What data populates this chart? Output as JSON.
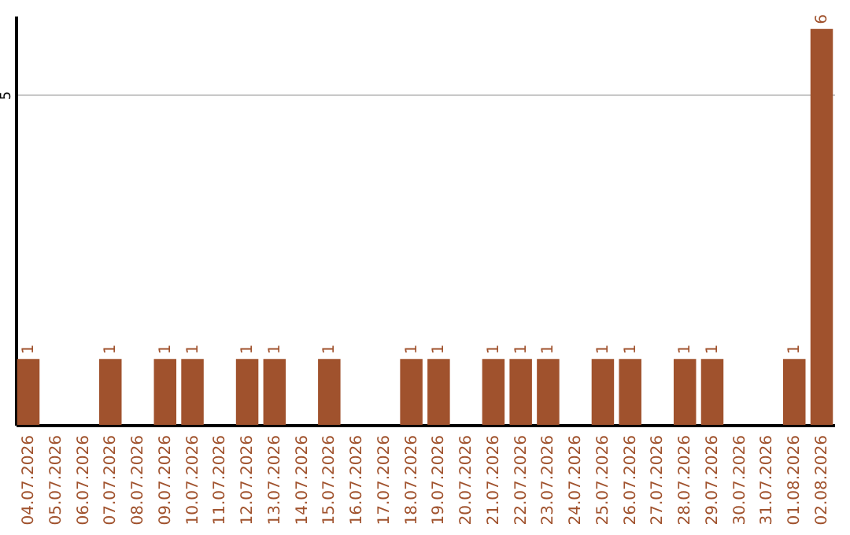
{
  "chart_data": {
    "type": "bar",
    "categories": [
      "04.07.2026",
      "05.07.2026",
      "06.07.2026",
      "07.07.2026",
      "08.07.2026",
      "09.07.2026",
      "10.07.2026",
      "11.07.2026",
      "12.07.2026",
      "13.07.2026",
      "14.07.2026",
      "15.07.2026",
      "16.07.2026",
      "17.07.2026",
      "18.07.2026",
      "19.07.2026",
      "20.07.2026",
      "21.07.2026",
      "22.07.2026",
      "23.07.2026",
      "24.07.2026",
      "25.07.2026",
      "26.07.2026",
      "27.07.2026",
      "28.07.2026",
      "29.07.2026",
      "30.07.2026",
      "31.07.2026",
      "01.08.2026",
      "02.08.2026"
    ],
    "values": [
      1,
      0,
      0,
      1,
      0,
      1,
      1,
      0,
      1,
      1,
      0,
      1,
      0,
      0,
      1,
      1,
      0,
      1,
      1,
      1,
      0,
      1,
      1,
      0,
      1,
      1,
      0,
      0,
      1,
      6
    ],
    "value_labels": [
      "1",
      null,
      null,
      "1",
      null,
      "1",
      "1",
      null,
      "1",
      "1",
      null,
      "1",
      null,
      null,
      "1",
      "1",
      null,
      "1",
      "1",
      "1",
      null,
      "1",
      "1",
      null,
      "1",
      "1",
      null,
      null,
      "1",
      "6"
    ],
    "color": "#a0522d",
    "ylim": [
      0,
      6.2
    ],
    "yticks": [
      5
    ],
    "grid": "y"
  }
}
